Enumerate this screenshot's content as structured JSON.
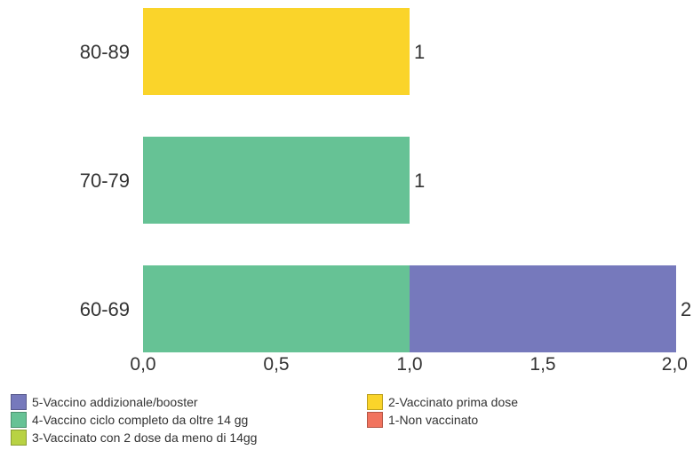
{
  "chart_data": {
    "type": "bar",
    "orientation": "horizontal",
    "stacked": true,
    "categories": [
      "80-89",
      "70-79",
      "60-69"
    ],
    "series": [
      {
        "name": "4-Vaccino ciclo completo da oltre 14 gg",
        "color": "#66C295",
        "values": [
          0,
          1,
          1
        ]
      },
      {
        "name": "5-Vaccino addizionale/booster",
        "color": "#7679BC",
        "values": [
          0,
          0,
          1
        ]
      },
      {
        "name": "2-Vaccinato prima dose",
        "color": "#FAD42A",
        "values": [
          1,
          0,
          0
        ]
      }
    ],
    "totals": [
      "1",
      "1",
      "2"
    ],
    "xlim": [
      0,
      2
    ],
    "x_ticks": [
      "0,0",
      "0,5",
      "1,0",
      "1,5",
      "2,0"
    ],
    "grid": false,
    "legend_position": "bottom",
    "legend": [
      {
        "label": "5-Vaccino addizionale/booster",
        "color": "#7679BC"
      },
      {
        "label": "4-Vaccino ciclo completo da oltre 14 gg",
        "color": "#66C295"
      },
      {
        "label": "3-Vaccinato con 2 dose da meno di 14gg",
        "color": "#B8D243"
      },
      {
        "label": "2-Vaccinato prima dose",
        "color": "#FAD42A"
      },
      {
        "label": "1-Non vaccinato",
        "color": "#F1735E"
      }
    ]
  }
}
